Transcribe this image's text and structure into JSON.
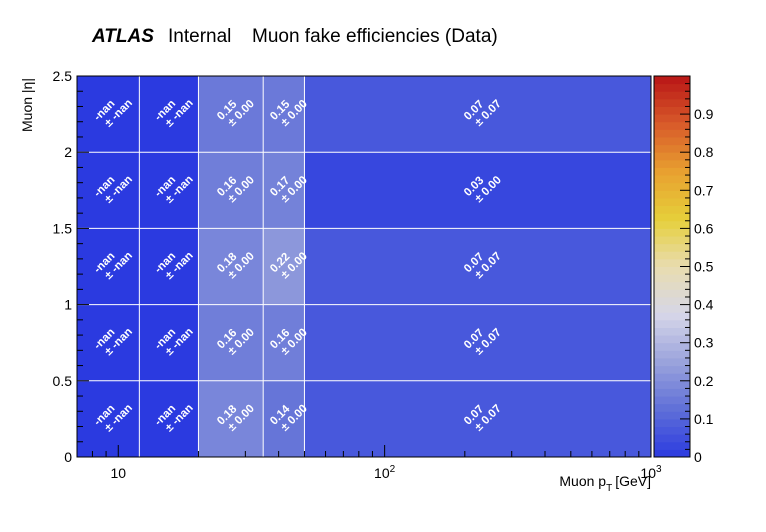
{
  "header": {
    "brand": "ATLAS",
    "status": "Internal",
    "title": "Muon fake efficiencies (Data)"
  },
  "chart_data": {
    "type": "heatmap",
    "title": "Muon fake efficiencies (Data)",
    "xlabel": "Muon p",
    "xlabel_sub": "T",
    "xlabel_unit": "[GeV]",
    "ylabel": "Muon |η|",
    "x_scale": "log",
    "x_edges": [
      7,
      12,
      20,
      35,
      50,
      1000
    ],
    "y_edges": [
      0,
      0.5,
      1,
      1.5,
      2,
      2.5
    ],
    "xlim": [
      7,
      1000
    ],
    "ylim": [
      0,
      2.5
    ],
    "x_major_ticks": [
      {
        "value": 10,
        "base": "10",
        "exp": ""
      },
      {
        "value": 100,
        "base": "10",
        "exp": "2"
      },
      {
        "value": 1000,
        "base": "10",
        "exp": "3"
      }
    ],
    "y_ticks": [
      {
        "value": 0,
        "label": "0"
      },
      {
        "value": 0.5,
        "label": "0.5"
      },
      {
        "value": 1,
        "label": "1"
      },
      {
        "value": 1.5,
        "label": "1.5"
      },
      {
        "value": 2,
        "label": "2"
      },
      {
        "value": 2.5,
        "label": "2.5"
      }
    ],
    "z_range": [
      0,
      1
    ],
    "z_ticks": [
      {
        "value": 0,
        "label": "0"
      },
      {
        "value": 0.1,
        "label": "0.1"
      },
      {
        "value": 0.2,
        "label": "0.2"
      },
      {
        "value": 0.3,
        "label": "0.3"
      },
      {
        "value": 0.4,
        "label": "0.4"
      },
      {
        "value": 0.5,
        "label": "0.5"
      },
      {
        "value": 0.6,
        "label": "0.6"
      },
      {
        "value": 0.7,
        "label": "0.7"
      },
      {
        "value": 0.8,
        "label": "0.8"
      },
      {
        "value": 0.9,
        "label": "0.9"
      }
    ],
    "grid": true,
    "cells": [
      {
        "x": 0,
        "y": 0,
        "value": "-nan",
        "error": "-nan",
        "z": 0
      },
      {
        "x": 1,
        "y": 0,
        "value": "-nan",
        "error": "-nan",
        "z": 0
      },
      {
        "x": 2,
        "y": 0,
        "value": "0.18",
        "error": "0.00",
        "z": 0.18
      },
      {
        "x": 3,
        "y": 0,
        "value": "0.14",
        "error": "0.00",
        "z": 0.14
      },
      {
        "x": 4,
        "y": 0,
        "value": "0.07",
        "error": "0.07",
        "z": 0.07
      },
      {
        "x": 0,
        "y": 1,
        "value": "-nan",
        "error": "-nan",
        "z": 0
      },
      {
        "x": 1,
        "y": 1,
        "value": "-nan",
        "error": "-nan",
        "z": 0
      },
      {
        "x": 2,
        "y": 1,
        "value": "0.16",
        "error": "0.00",
        "z": 0.16
      },
      {
        "x": 3,
        "y": 1,
        "value": "0.16",
        "error": "0.00",
        "z": 0.16
      },
      {
        "x": 4,
        "y": 1,
        "value": "0.07",
        "error": "0.07",
        "z": 0.07
      },
      {
        "x": 0,
        "y": 2,
        "value": "-nan",
        "error": "-nan",
        "z": 0
      },
      {
        "x": 1,
        "y": 2,
        "value": "-nan",
        "error": "-nan",
        "z": 0
      },
      {
        "x": 2,
        "y": 2,
        "value": "0.18",
        "error": "0.00",
        "z": 0.18
      },
      {
        "x": 3,
        "y": 2,
        "value": "0.22",
        "error": "0.00",
        "z": 0.22
      },
      {
        "x": 4,
        "y": 2,
        "value": "0.07",
        "error": "0.07",
        "z": 0.07
      },
      {
        "x": 0,
        "y": 3,
        "value": "-nan",
        "error": "-nan",
        "z": 0
      },
      {
        "x": 1,
        "y": 3,
        "value": "-nan",
        "error": "-nan",
        "z": 0
      },
      {
        "x": 2,
        "y": 3,
        "value": "0.16",
        "error": "0.00",
        "z": 0.16
      },
      {
        "x": 3,
        "y": 3,
        "value": "0.17",
        "error": "0.00",
        "z": 0.17
      },
      {
        "x": 4,
        "y": 3,
        "value": "0.03",
        "error": "0.00",
        "z": 0.03
      },
      {
        "x": 0,
        "y": 4,
        "value": "-nan",
        "error": "-nan",
        "z": 0
      },
      {
        "x": 1,
        "y": 4,
        "value": "-nan",
        "error": "-nan",
        "z": 0
      },
      {
        "x": 2,
        "y": 4,
        "value": "0.15",
        "error": "0.00",
        "z": 0.15
      },
      {
        "x": 3,
        "y": 4,
        "value": "0.15",
        "error": "0.00",
        "z": 0.15
      },
      {
        "x": 4,
        "y": 4,
        "value": "0.07",
        "error": "0.07",
        "z": 0.07
      }
    ],
    "palette": [
      "#2b3ae0",
      "#5f6fd8",
      "#9aa3dc",
      "#d6d6e8",
      "#e8dcb0",
      "#e6cf3a",
      "#e8a030",
      "#d85a2a",
      "#b81616"
    ]
  }
}
